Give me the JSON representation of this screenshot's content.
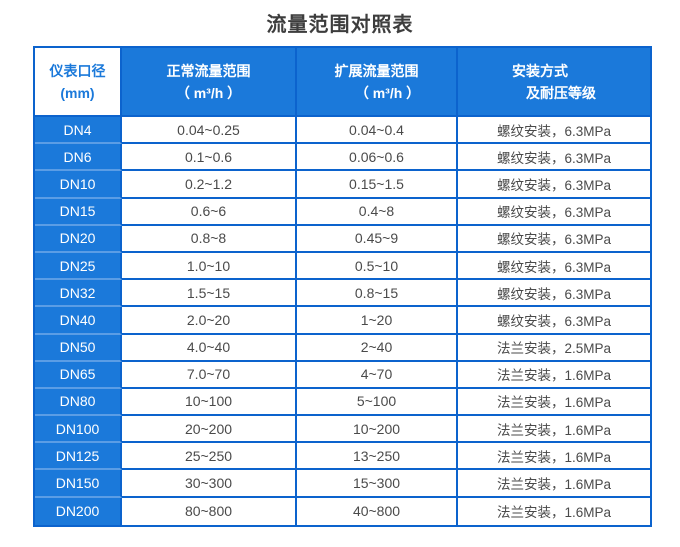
{
  "title": "流量范围对照表",
  "colors": {
    "primary_blue": "#1b79da",
    "grid_border_blue": "#0c63cd",
    "dn_column_separator_blue": "#5b9de5",
    "body_text": "#4a4a4a",
    "title_text": "#3d3d3d",
    "header_text": "#ffffff"
  },
  "table": {
    "headers": {
      "diameter": {
        "line1": "仪表口径",
        "line2": "(mm)"
      },
      "normal_range": {
        "line1": "正常流量范围",
        "line2": "（ m³/h ）"
      },
      "extended_range": {
        "line1": "扩展流量范围",
        "line2": "（ m³/h ）"
      },
      "install": {
        "line1": "安装方式",
        "line2": "及耐压等级"
      }
    },
    "rows": [
      {
        "dn": "DN4",
        "normal": "0.04~0.25",
        "extended": "0.04~0.4",
        "install": "螺纹安装，6.3MPa"
      },
      {
        "dn": "DN6",
        "normal": "0.1~0.6",
        "extended": "0.06~0.6",
        "install": "螺纹安装，6.3MPa"
      },
      {
        "dn": "DN10",
        "normal": "0.2~1.2",
        "extended": "0.15~1.5",
        "install": "螺纹安装，6.3MPa"
      },
      {
        "dn": "DN15",
        "normal": "0.6~6",
        "extended": "0.4~8",
        "install": "螺纹安装，6.3MPa"
      },
      {
        "dn": "DN20",
        "normal": "0.8~8",
        "extended": "0.45~9",
        "install": "螺纹安装，6.3MPa"
      },
      {
        "dn": "DN25",
        "normal": "1.0~10",
        "extended": "0.5~10",
        "install": "螺纹安装，6.3MPa"
      },
      {
        "dn": "DN32",
        "normal": "1.5~15",
        "extended": "0.8~15",
        "install": "螺纹安装，6.3MPa"
      },
      {
        "dn": "DN40",
        "normal": "2.0~20",
        "extended": "1~20",
        "install": "螺纹安装，6.3MPa"
      },
      {
        "dn": "DN50",
        "normal": "4.0~40",
        "extended": "2~40",
        "install": "法兰安装，2.5MPa"
      },
      {
        "dn": "DN65",
        "normal": "7.0~70",
        "extended": "4~70",
        "install": "法兰安装，1.6MPa"
      },
      {
        "dn": "DN80",
        "normal": "10~100",
        "extended": "5~100",
        "install": "法兰安装，1.6MPa"
      },
      {
        "dn": "DN100",
        "normal": "20~200",
        "extended": "10~200",
        "install": "法兰安装，1.6MPa"
      },
      {
        "dn": "DN125",
        "normal": "25~250",
        "extended": "13~250",
        "install": "法兰安装，1.6MPa"
      },
      {
        "dn": "DN150",
        "normal": "30~300",
        "extended": "15~300",
        "install": "法兰安装，1.6MPa"
      },
      {
        "dn": "DN200",
        "normal": "80~800",
        "extended": "40~800",
        "install": "法兰安装，1.6MPa"
      }
    ]
  }
}
